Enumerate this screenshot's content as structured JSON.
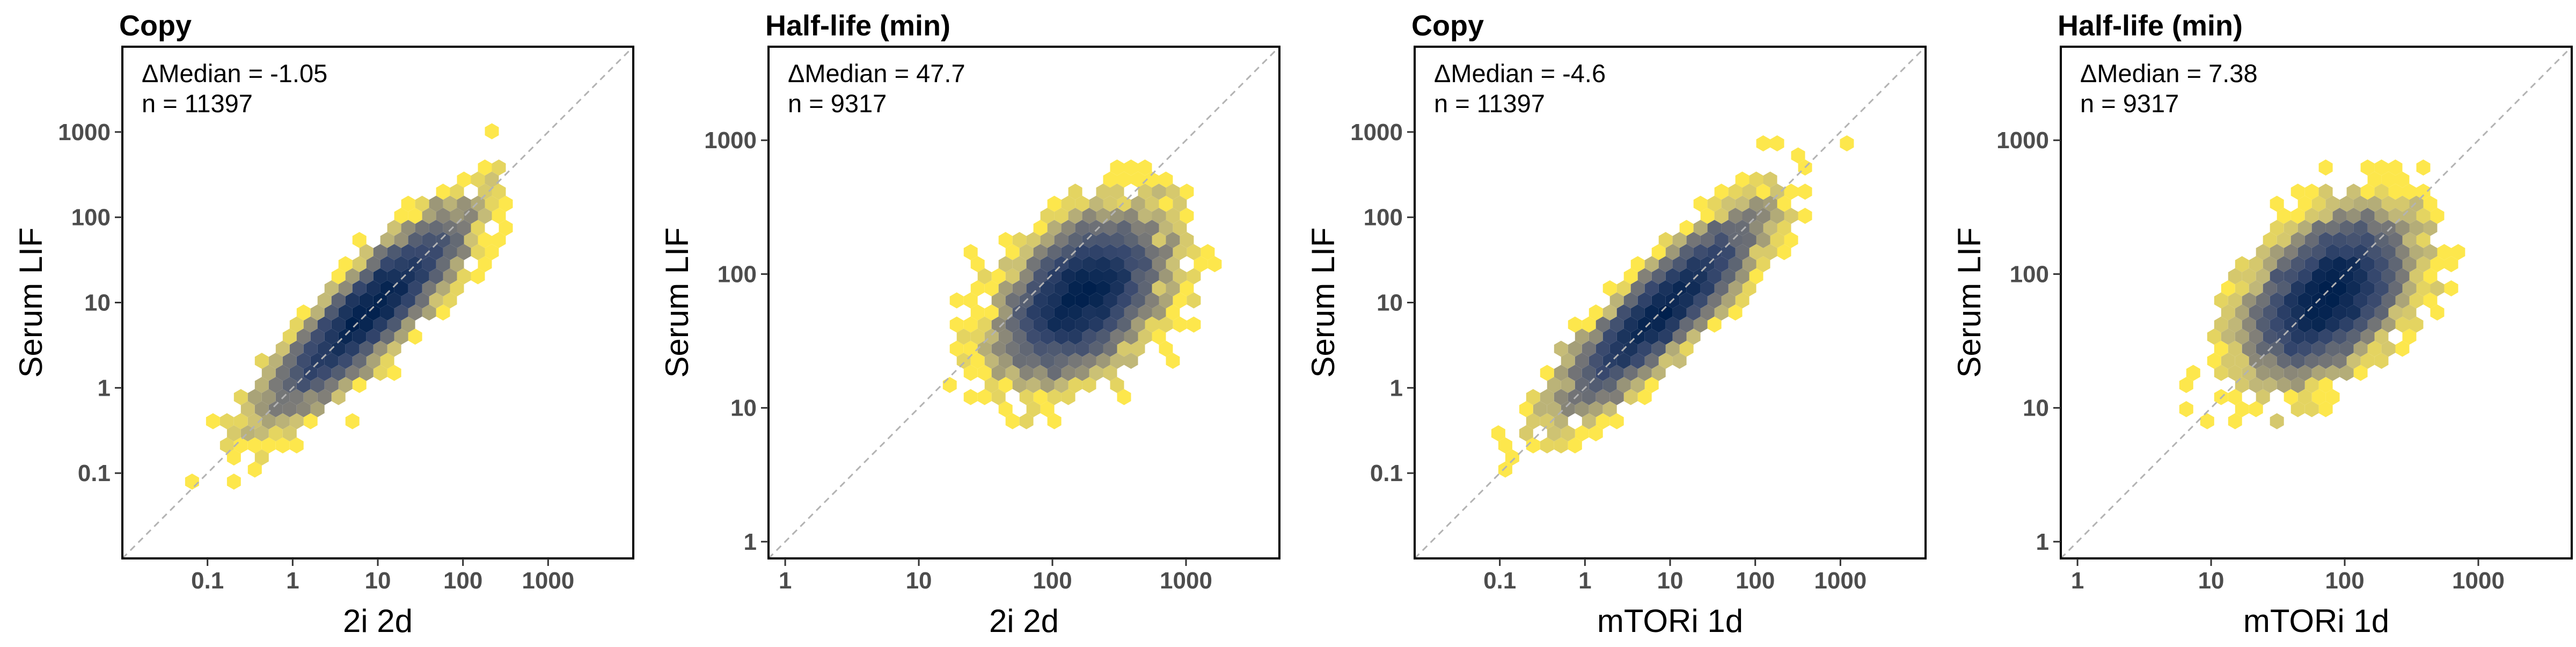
{
  "colors": {
    "low_density": "#fde74c",
    "mid_density": "#9b9b8c",
    "high_density": "#00204d",
    "diagonal": "#b3b3b3",
    "frame": "#000000",
    "tick_label": "#4d4d4d"
  },
  "chart_data": [
    {
      "type": "scatter",
      "subtype": "hexbin",
      "title": "Copy",
      "xlabel": "2i 2d",
      "ylabel": "Serum LIF",
      "log_scale": true,
      "xlim": [
        0.01,
        10000
      ],
      "ylim": [
        0.01,
        10000
      ],
      "xticks": [
        0.1,
        1,
        10,
        100,
        1000
      ],
      "xtick_labels": [
        "0.1",
        "1",
        "10",
        "100",
        "1000"
      ],
      "yticks": [
        0.1,
        1,
        10,
        100,
        1000
      ],
      "ytick_labels": [
        "0.1",
        "1",
        "10",
        "100",
        "1000"
      ],
      "annotation": {
        "median_label": "ΔMedian = -1.05",
        "n_label": "n = 11397"
      },
      "density_center": [
        8,
        8
      ],
      "density_spread": [
        0.7,
        0.18
      ],
      "identity_line": true,
      "grid": false
    },
    {
      "type": "scatter",
      "subtype": "hexbin",
      "title": "Half-life (min)",
      "xlabel": "2i 2d",
      "ylabel": "Serum LIF",
      "log_scale": true,
      "xlim": [
        0.75,
        5000
      ],
      "ylim": [
        0.75,
        5000
      ],
      "xticks": [
        1,
        10,
        100,
        1000
      ],
      "xtick_labels": [
        "1",
        "10",
        "100",
        "1000"
      ],
      "yticks": [
        1,
        10,
        100,
        1000
      ],
      "ytick_labels": [
        "1",
        "10",
        "100",
        "1000"
      ],
      "annotation": {
        "median_label": "ΔMedian = 47.7",
        "n_label": "n = 9317"
      },
      "density_center": [
        170,
        70
      ],
      "density_spread": [
        0.32,
        0.2
      ],
      "identity_line": true,
      "grid": false
    },
    {
      "type": "scatter",
      "subtype": "hexbin",
      "title": "Copy",
      "xlabel": "mTORi 1d",
      "ylabel": "Serum LIF",
      "log_scale": true,
      "xlim": [
        0.01,
        10000
      ],
      "ylim": [
        0.01,
        10000
      ],
      "xticks": [
        0.1,
        1,
        10,
        100,
        1000
      ],
      "xtick_labels": [
        "0.1",
        "1",
        "10",
        "100",
        "1000"
      ],
      "yticks": [
        0.1,
        1,
        10,
        100,
        1000
      ],
      "ytick_labels": [
        "0.1",
        "1",
        "10",
        "100",
        "1000"
      ],
      "annotation": {
        "median_label": "ΔMedian = -4.6",
        "n_label": "n = 11397"
      },
      "density_center": [
        8,
        8
      ],
      "density_spread": [
        0.7,
        0.18
      ],
      "identity_line": true,
      "grid": false
    },
    {
      "type": "scatter",
      "subtype": "hexbin",
      "title": "Half-life (min)",
      "xlabel": "mTORi 1d",
      "ylabel": "Serum LIF",
      "log_scale": true,
      "xlim": [
        0.75,
        5000
      ],
      "ylim": [
        0.75,
        5000
      ],
      "xticks": [
        1,
        10,
        100,
        1000
      ],
      "xtick_labels": [
        "1",
        "10",
        "100",
        "1000"
      ],
      "yticks": [
        1,
        10,
        100,
        1000
      ],
      "ytick_labels": [
        "1",
        "10",
        "100",
        "1000"
      ],
      "annotation": {
        "median_label": "ΔMedian = 7.38",
        "n_label": "n = 9317"
      },
      "density_center": [
        75,
        70
      ],
      "density_spread": [
        0.32,
        0.2
      ],
      "identity_line": true,
      "grid": false
    }
  ]
}
